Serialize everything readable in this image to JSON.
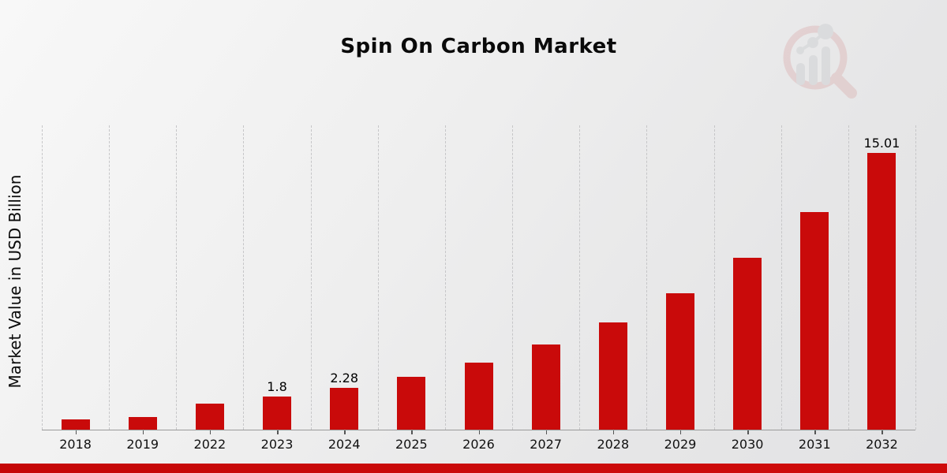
{
  "title": "Spin On Carbon Market",
  "y_axis_label": "Market Value in USD Billion",
  "watermark": {
    "icon": "magnifier-bar-chart-logo"
  },
  "colors": {
    "bar": "#c90a0a",
    "footer_accent": "#c50808",
    "gridline": "#c6c6c8",
    "axis_line": "#9a9a9a",
    "background": "#ececec"
  },
  "chart_data": {
    "type": "bar",
    "title": "Spin On Carbon Market",
    "xlabel": "",
    "ylabel": "Market Value in USD Billion",
    "categories": [
      "2018",
      "2019",
      "2022",
      "2023",
      "2024",
      "2025",
      "2026",
      "2027",
      "2028",
      "2029",
      "2030",
      "2031",
      "2032"
    ],
    "values": [
      0.55,
      0.7,
      1.42,
      1.8,
      2.28,
      2.88,
      3.65,
      4.61,
      5.83,
      7.38,
      9.33,
      11.81,
      15.01
    ],
    "data_labels": [
      "",
      "",
      "",
      "1.8",
      "2.28",
      "",
      "",
      "",
      "",
      "",
      "",
      "",
      "15.01"
    ],
    "ylim": [
      0,
      16.5
    ],
    "grid": "vertical-dashed",
    "legend": "none",
    "bar_color": "#c90a0a"
  }
}
